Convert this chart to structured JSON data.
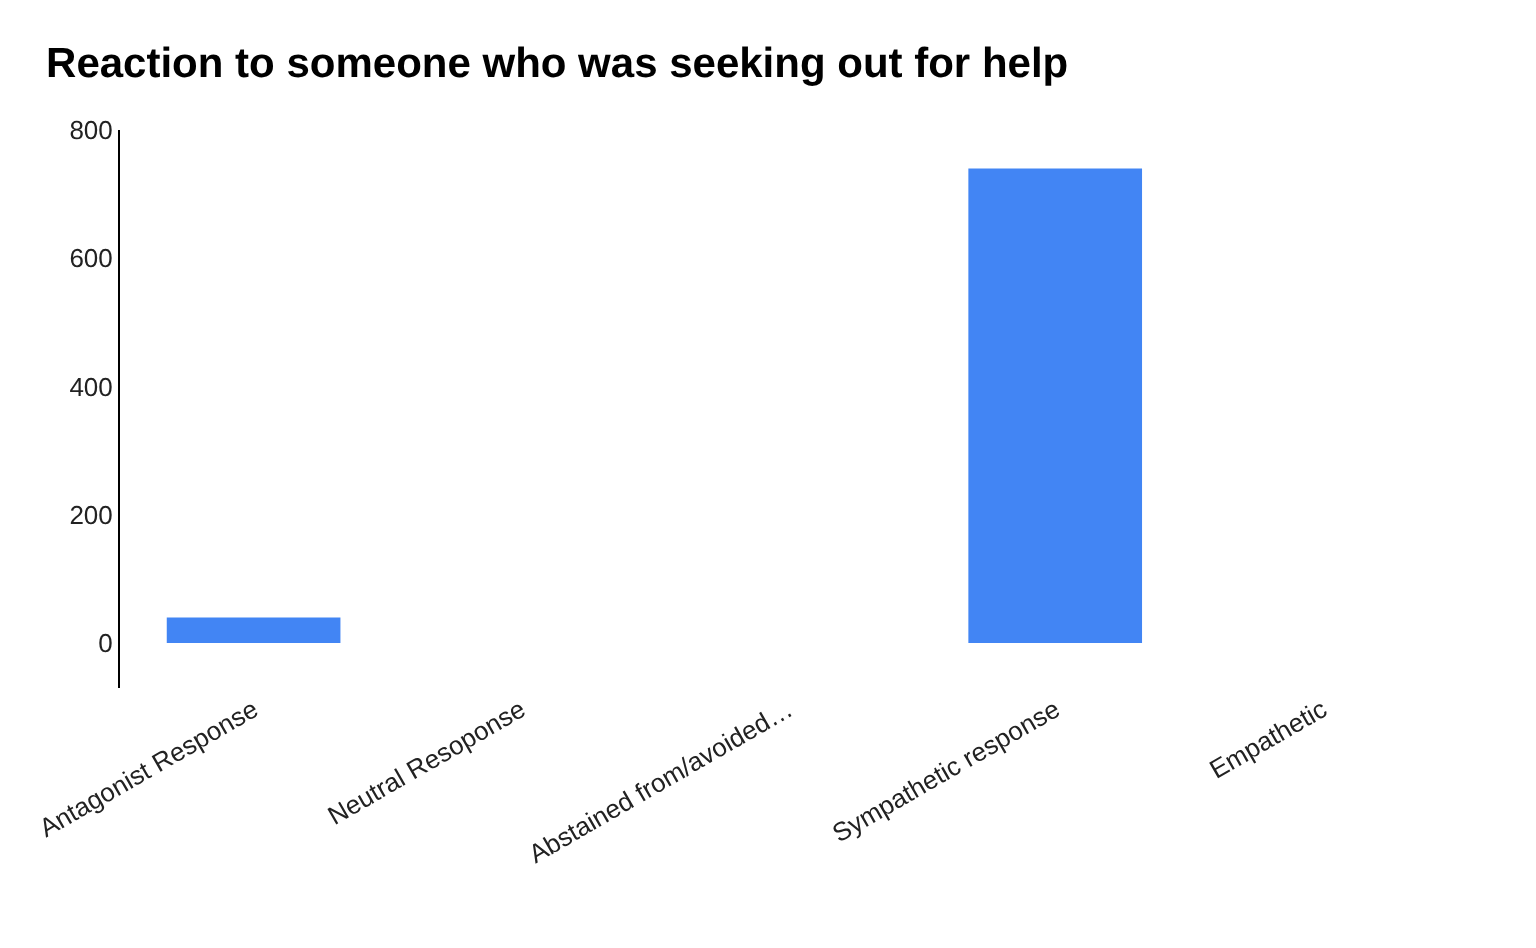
{
  "chart_data": {
    "type": "bar",
    "title": "Reaction to someone who was seeking out for help",
    "categories": [
      "Antagonist Response",
      "Neutral Resoponse",
      "Abstained from/avoided…",
      "Sympathetic response",
      "Empathetic"
    ],
    "values": [
      40,
      0,
      0,
      740,
      0
    ],
    "color": "#4285f4",
    "ylim": [
      -70,
      800
    ],
    "yticks": [
      0,
      200,
      400,
      600,
      800
    ],
    "grid": false
  }
}
